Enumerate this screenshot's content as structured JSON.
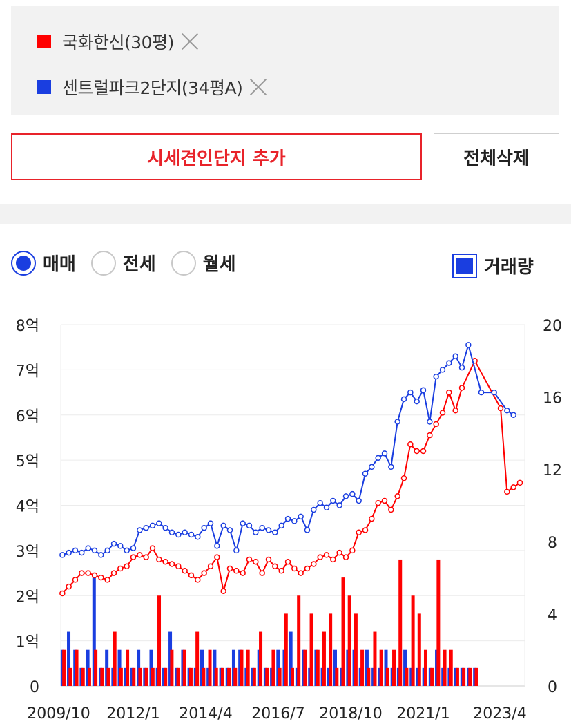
{
  "legend": {
    "items": [
      {
        "label": "국화한신(30평)",
        "color": "#ff0000"
      },
      {
        "label": "센트럴파크2단지(34평A)",
        "color": "#1a3ee0"
      }
    ]
  },
  "buttons": {
    "add_label": "시세견인단지 추가",
    "delete_label": "전체삭제"
  },
  "tabs": {
    "options": [
      {
        "label": "매매",
        "checked": true
      },
      {
        "label": "전세",
        "checked": false
      },
      {
        "label": "월세",
        "checked": false
      }
    ],
    "volume_label": "거래량"
  },
  "chart_data": {
    "type": "line",
    "x_ticks": [
      "2009/10",
      "2012/1",
      "2014/4",
      "2016/7",
      "2018/10",
      "2021/1",
      "2023/4"
    ],
    "x_range": [
      "2009/10",
      "2024/2"
    ],
    "y_left": {
      "ticks": [
        "0",
        "1억",
        "2억",
        "3억",
        "4억",
        "5억",
        "6억",
        "7억",
        "8억"
      ],
      "range": [
        0,
        8
      ]
    },
    "y_right": {
      "ticks": [
        "0",
        "4",
        "8",
        "12",
        "16",
        "20"
      ],
      "range": [
        0,
        20
      ]
    },
    "grid": true,
    "series": [
      {
        "name": "국화한신(30평)",
        "color": "#ff0000",
        "unit": "억",
        "points": [
          [
            2009.8,
            2.05
          ],
          [
            2010.0,
            2.2
          ],
          [
            2010.2,
            2.35
          ],
          [
            2010.4,
            2.5
          ],
          [
            2010.6,
            2.5
          ],
          [
            2010.8,
            2.45
          ],
          [
            2011.0,
            2.4
          ],
          [
            2011.2,
            2.35
          ],
          [
            2011.4,
            2.5
          ],
          [
            2011.6,
            2.6
          ],
          [
            2011.8,
            2.65
          ],
          [
            2012.0,
            2.85
          ],
          [
            2012.2,
            2.9
          ],
          [
            2012.4,
            2.85
          ],
          [
            2012.6,
            3.05
          ],
          [
            2012.8,
            2.8
          ],
          [
            2013.0,
            2.75
          ],
          [
            2013.2,
            2.7
          ],
          [
            2013.4,
            2.65
          ],
          [
            2013.6,
            2.55
          ],
          [
            2013.8,
            2.45
          ],
          [
            2014.0,
            2.35
          ],
          [
            2014.2,
            2.5
          ],
          [
            2014.4,
            2.65
          ],
          [
            2014.6,
            2.85
          ],
          [
            2014.8,
            2.1
          ],
          [
            2015.0,
            2.6
          ],
          [
            2015.2,
            2.55
          ],
          [
            2015.4,
            2.5
          ],
          [
            2015.6,
            2.8
          ],
          [
            2015.8,
            2.75
          ],
          [
            2016.0,
            2.5
          ],
          [
            2016.2,
            2.8
          ],
          [
            2016.4,
            2.65
          ],
          [
            2016.6,
            2.55
          ],
          [
            2016.8,
            2.75
          ],
          [
            2017.0,
            2.6
          ],
          [
            2017.2,
            2.5
          ],
          [
            2017.4,
            2.6
          ],
          [
            2017.6,
            2.7
          ],
          [
            2017.8,
            2.85
          ],
          [
            2018.0,
            2.9
          ],
          [
            2018.2,
            2.8
          ],
          [
            2018.4,
            2.95
          ],
          [
            2018.6,
            2.85
          ],
          [
            2018.8,
            3.0
          ],
          [
            2019.0,
            3.4
          ],
          [
            2019.2,
            3.45
          ],
          [
            2019.4,
            3.7
          ],
          [
            2019.6,
            4.05
          ],
          [
            2019.8,
            4.1
          ],
          [
            2020.0,
            3.9
          ],
          [
            2020.2,
            4.2
          ],
          [
            2020.4,
            4.6
          ],
          [
            2020.6,
            5.35
          ],
          [
            2020.8,
            5.2
          ],
          [
            2021.0,
            5.2
          ],
          [
            2021.2,
            5.55
          ],
          [
            2021.4,
            5.8
          ],
          [
            2021.6,
            6.05
          ],
          [
            2021.8,
            6.5
          ],
          [
            2022.0,
            6.1
          ],
          [
            2022.2,
            6.6
          ],
          [
            2022.6,
            7.2
          ],
          [
            2023.4,
            6.15
          ],
          [
            2023.6,
            4.3
          ],
          [
            2023.8,
            4.4
          ],
          [
            2024.0,
            4.5
          ]
        ]
      },
      {
        "name": "센트럴파크2단지(34평A)",
        "color": "#1a3ee0",
        "unit": "억",
        "points": [
          [
            2009.8,
            2.9
          ],
          [
            2010.0,
            2.95
          ],
          [
            2010.2,
            3.0
          ],
          [
            2010.4,
            2.95
          ],
          [
            2010.6,
            3.05
          ],
          [
            2010.8,
            3.0
          ],
          [
            2011.0,
            2.9
          ],
          [
            2011.2,
            3.0
          ],
          [
            2011.4,
            3.15
          ],
          [
            2011.6,
            3.1
          ],
          [
            2011.8,
            3.0
          ],
          [
            2012.0,
            3.05
          ],
          [
            2012.2,
            3.45
          ],
          [
            2012.4,
            3.5
          ],
          [
            2012.6,
            3.55
          ],
          [
            2012.8,
            3.6
          ],
          [
            2013.0,
            3.5
          ],
          [
            2013.2,
            3.4
          ],
          [
            2013.4,
            3.35
          ],
          [
            2013.6,
            3.4
          ],
          [
            2013.8,
            3.35
          ],
          [
            2014.0,
            3.3
          ],
          [
            2014.2,
            3.5
          ],
          [
            2014.4,
            3.6
          ],
          [
            2014.6,
            3.1
          ],
          [
            2014.8,
            3.55
          ],
          [
            2015.0,
            3.45
          ],
          [
            2015.2,
            3.0
          ],
          [
            2015.4,
            3.6
          ],
          [
            2015.6,
            3.55
          ],
          [
            2015.8,
            3.4
          ],
          [
            2016.0,
            3.5
          ],
          [
            2016.2,
            3.45
          ],
          [
            2016.4,
            3.4
          ],
          [
            2016.6,
            3.55
          ],
          [
            2016.8,
            3.7
          ],
          [
            2017.0,
            3.65
          ],
          [
            2017.2,
            3.75
          ],
          [
            2017.4,
            3.45
          ],
          [
            2017.6,
            3.9
          ],
          [
            2017.8,
            4.05
          ],
          [
            2018.0,
            3.95
          ],
          [
            2018.2,
            4.1
          ],
          [
            2018.4,
            4.0
          ],
          [
            2018.6,
            4.2
          ],
          [
            2018.8,
            4.25
          ],
          [
            2019.0,
            4.1
          ],
          [
            2019.2,
            4.7
          ],
          [
            2019.4,
            4.85
          ],
          [
            2019.6,
            5.05
          ],
          [
            2019.8,
            5.15
          ],
          [
            2020.0,
            4.85
          ],
          [
            2020.2,
            5.85
          ],
          [
            2020.4,
            6.35
          ],
          [
            2020.6,
            6.5
          ],
          [
            2020.8,
            6.3
          ],
          [
            2021.0,
            6.55
          ],
          [
            2021.2,
            5.85
          ],
          [
            2021.4,
            6.85
          ],
          [
            2021.6,
            7.0
          ],
          [
            2021.8,
            7.15
          ],
          [
            2022.0,
            7.3
          ],
          [
            2022.2,
            7.05
          ],
          [
            2022.4,
            7.55
          ],
          [
            2022.8,
            6.5
          ],
          [
            2023.2,
            6.5
          ],
          [
            2023.6,
            6.1
          ],
          [
            2023.8,
            6.0
          ]
        ]
      }
    ],
    "volume": [
      {
        "name": "국화한신(30평)",
        "color": "#ff0000",
        "values": [
          2,
          1,
          2,
          1,
          1,
          2,
          1,
          1,
          3,
          1,
          2,
          1,
          1,
          1,
          1,
          5,
          1,
          2,
          1,
          2,
          1,
          3,
          1,
          2,
          1,
          1,
          1,
          1,
          2,
          2,
          1,
          3,
          1,
          2,
          1,
          4,
          1,
          5,
          2,
          4,
          2,
          3,
          4,
          1,
          6,
          5,
          4,
          2,
          1,
          3,
          2,
          1,
          2,
          7,
          1,
          5,
          4,
          2,
          1,
          7,
          2,
          2,
          1,
          1,
          1,
          1
        ]
      },
      {
        "name": "센트럴파크2단지(34평A)",
        "color": "#1a3ee0",
        "values": [
          2,
          3,
          2,
          1,
          2,
          6,
          1,
          2,
          1,
          2,
          1,
          1,
          2,
          1,
          2,
          1,
          1,
          3,
          1,
          2,
          1,
          1,
          2,
          1,
          2,
          1,
          1,
          2,
          2,
          1,
          1,
          2,
          1,
          1,
          2,
          2,
          3,
          1,
          2,
          1,
          2,
          1,
          1,
          2,
          1,
          2,
          2,
          1,
          2,
          1,
          1,
          2,
          1,
          1,
          2,
          1,
          1,
          1,
          1,
          2,
          1,
          1,
          1,
          1,
          1,
          1
        ]
      }
    ]
  }
}
